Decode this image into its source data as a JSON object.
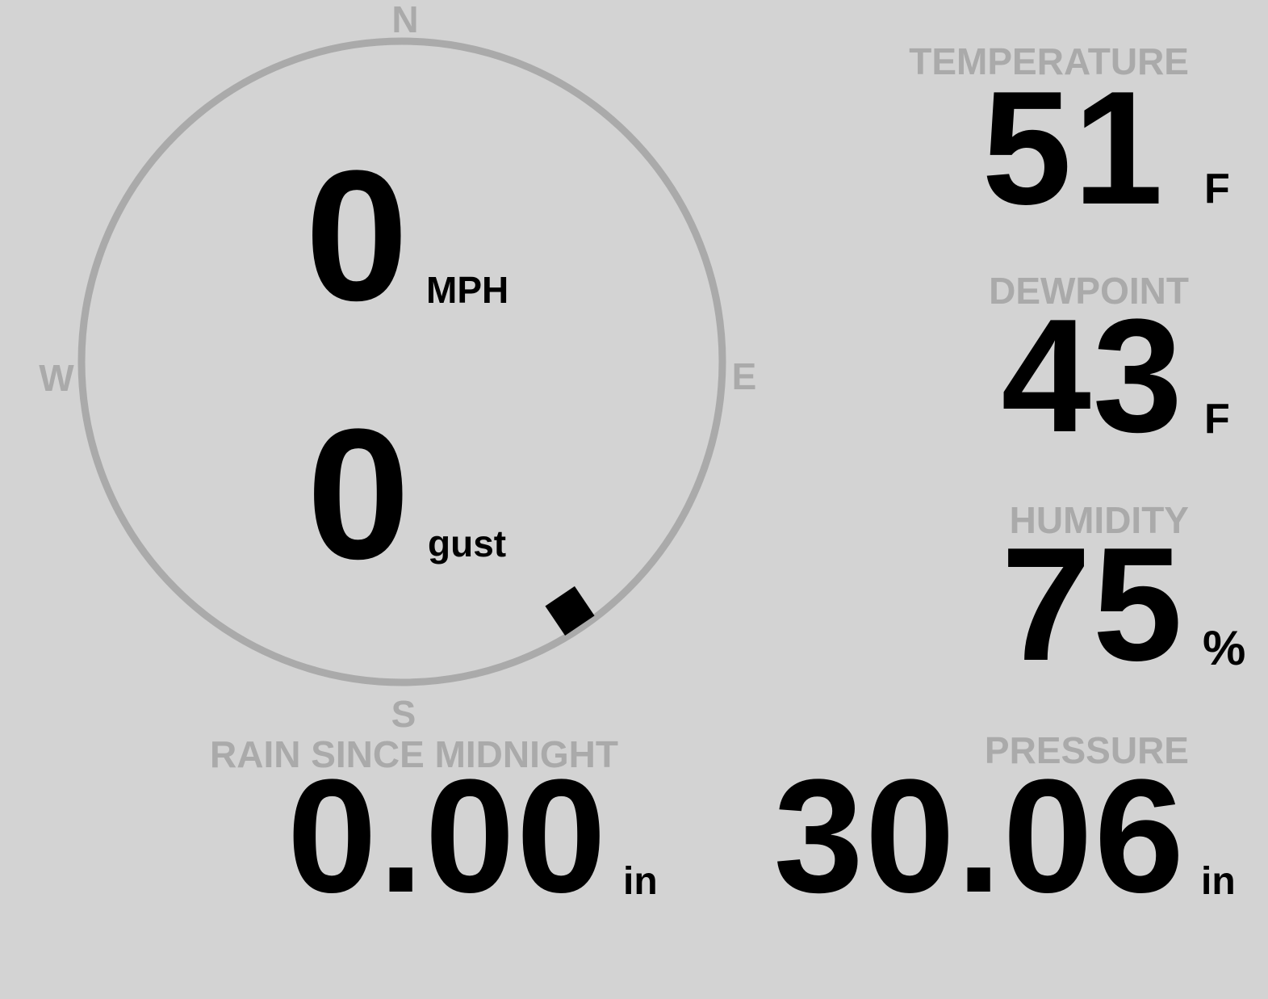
{
  "compass": {
    "north": "N",
    "south": "S",
    "east": "E",
    "west": "W",
    "wind_direction_deg": 146,
    "ring_color": "#aaaaaa",
    "marker_color": "#000000"
  },
  "wind": {
    "speed": "0",
    "speed_unit": "MPH",
    "gust": "0",
    "gust_unit": "gust"
  },
  "temperature": {
    "label": "TEMPERATURE",
    "value": "51",
    "unit": "F"
  },
  "dewpoint": {
    "label": "DEWPOINT",
    "value": "43",
    "unit": "F"
  },
  "humidity": {
    "label": "HUMIDITY",
    "value": "75",
    "unit": "%"
  },
  "rain": {
    "label": "RAIN SINCE MIDNIGHT",
    "value": "0.00",
    "unit": "in"
  },
  "pressure": {
    "label": "PRESSURE",
    "value": "30.06",
    "unit": "in"
  }
}
